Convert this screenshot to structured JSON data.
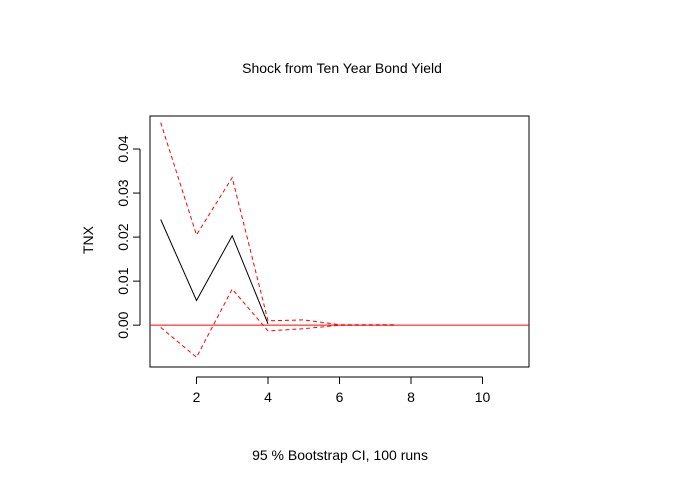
{
  "chart_data": {
    "type": "line",
    "title": "Shock from Ten Year Bond Yield",
    "xlabel": "95 % Bootstrap CI,  100 runs",
    "ylabel": "TNX",
    "xlim": [
      0.7,
      11.3
    ],
    "ylim": [
      -0.0095,
      0.0475
    ],
    "x_ticks": [
      2,
      4,
      6,
      8,
      10
    ],
    "y_ticks": [
      0.0,
      0.01,
      0.02,
      0.03,
      0.04
    ],
    "x_tick_labels": [
      "2",
      "4",
      "6",
      "8",
      "10"
    ],
    "y_tick_labels": [
      "0.00",
      "0.01",
      "0.02",
      "0.03",
      "0.04"
    ],
    "zero_line": 0,
    "series": [
      {
        "role": "response",
        "style": "solid",
        "color": "#000000",
        "x": [
          1,
          2,
          3,
          4
        ],
        "y": [
          0.024,
          0.0056,
          0.0203,
          0.0003
        ]
      },
      {
        "role": "upper",
        "style": "dashed",
        "color": "#ff0000",
        "x": [
          1,
          2,
          3,
          4,
          5,
          6,
          7,
          7.6
        ],
        "y": [
          0.046,
          0.0205,
          0.0335,
          0.001,
          0.0012,
          0.0001,
          0.0001,
          0.0001
        ]
      },
      {
        "role": "lower",
        "style": "dashed",
        "color": "#ff0000",
        "x": [
          1,
          2,
          3,
          4,
          5,
          6,
          7,
          7.6
        ],
        "y": [
          -0.0005,
          -0.0073,
          0.0082,
          -0.0013,
          -0.0008,
          0.0,
          0.0,
          0.0
        ]
      }
    ],
    "zero_line_color": "#ff0000",
    "grid": false
  }
}
